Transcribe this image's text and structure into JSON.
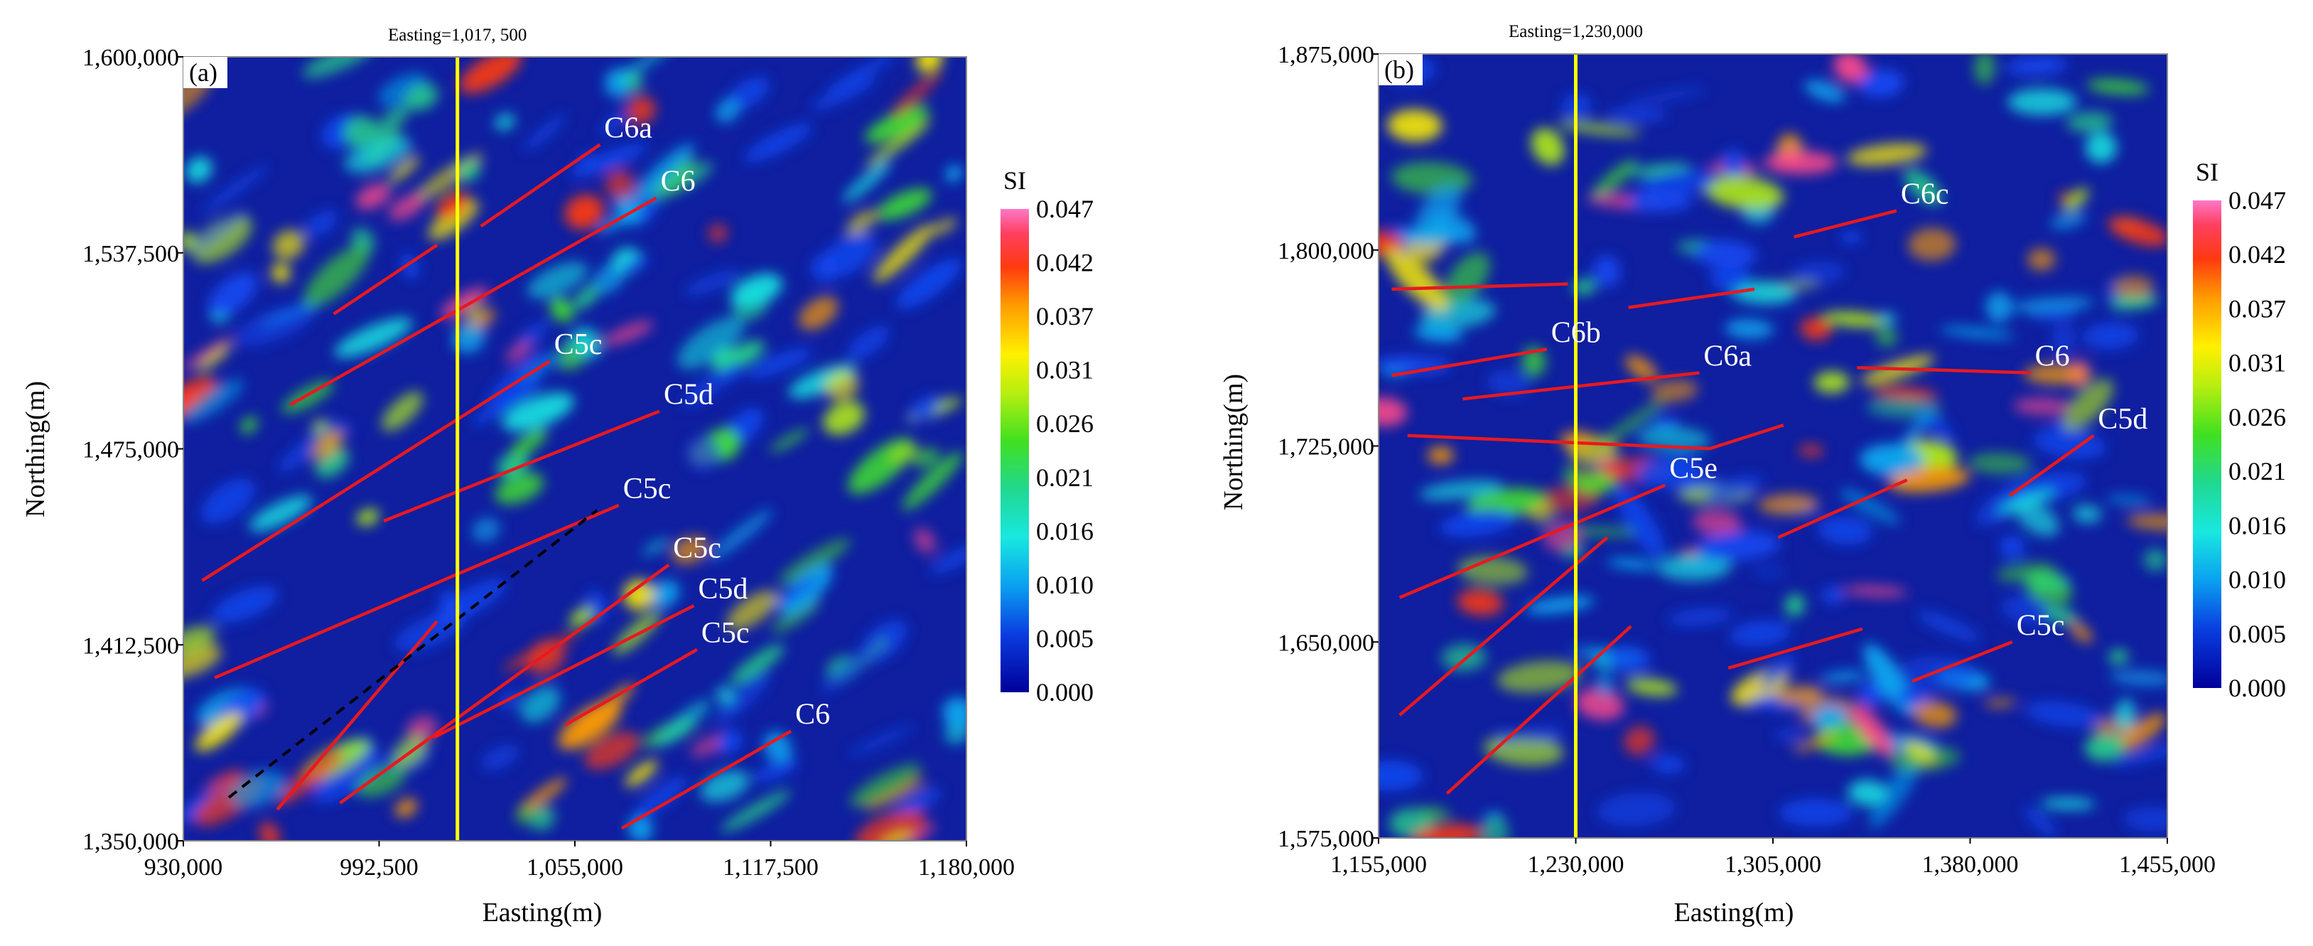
{
  "chart_data": [
    {
      "type": "heatmap",
      "panel_label": "(a)",
      "xlabel": "Easting(m)",
      "ylabel": "Northing(m)",
      "x_ticks": [
        "930,000",
        "992,500",
        "1,055,000",
        "1,117,500",
        "1,180,000"
      ],
      "y_ticks": [
        "1,600,000",
        "1,537,500",
        "1,475,000",
        "1,412,500",
        "1,350,000"
      ],
      "xlim": [
        930000,
        1180000
      ],
      "ylim": [
        1350000,
        1600000
      ],
      "profile_label": "Easting=1,017, 500",
      "profile_easting": 1017500,
      "lineaments": [
        {
          "label": "C6a",
          "x1": 1025000,
          "y1": 1546000,
          "x2": 1063000,
          "y2": 1572000
        },
        {
          "label": "C6",
          "x1": 964000,
          "y1": 1489000,
          "x2": 1081000,
          "y2": 1555000
        },
        {
          "label": "",
          "x1": 978000,
          "y1": 1518000,
          "x2": 1011000,
          "y2": 1540000
        },
        {
          "label": "C5c",
          "x1": 936000,
          "y1": 1433000,
          "x2": 1047000,
          "y2": 1503000
        },
        {
          "label": "C5d",
          "x1": 994000,
          "y1": 1452000,
          "x2": 1082000,
          "y2": 1487000
        },
        {
          "label": "C5c",
          "x1": 940000,
          "y1": 1402000,
          "x2": 1069000,
          "y2": 1457000
        },
        {
          "label": "C5c",
          "x1": 980000,
          "y1": 1362000,
          "x2": 1085000,
          "y2": 1438000
        },
        {
          "label": "C5d",
          "x1": 1010000,
          "y1": 1383000,
          "x2": 1093000,
          "y2": 1425000
        },
        {
          "label": "C5c",
          "x1": 1052000,
          "y1": 1387000,
          "x2": 1094000,
          "y2": 1411000
        },
        {
          "label": "C6",
          "x1": 1070000,
          "y1": 1354000,
          "x2": 1124000,
          "y2": 1385000
        },
        {
          "label": "",
          "x1": 960000,
          "y1": 1360000,
          "x2": 1011000,
          "y2": 1420000
        }
      ],
      "colorbar": {
        "title": "SI",
        "ticks": [
          "0.047",
          "0.042",
          "0.037",
          "0.031",
          "0.026",
          "0.021",
          "0.016",
          "0.010",
          "0.005",
          "0.000"
        ]
      },
      "colors": {
        "lineament": "#e8191f",
        "profile": "#ffff00",
        "background": "#0f1fa0"
      }
    },
    {
      "type": "heatmap",
      "panel_label": "(b)",
      "xlabel": "Easting(m)",
      "ylabel": "Northing(m)",
      "x_ticks": [
        "1,155,000",
        "1,230,000",
        "1,305,000",
        "1,380,000",
        "1,455,000"
      ],
      "y_ticks": [
        "1,875,000",
        "1,800,000",
        "1,725,000",
        "1,650,000",
        "1,575,000"
      ],
      "xlim": [
        1155000,
        1455000
      ],
      "ylim": [
        1575000,
        1875000
      ],
      "profile_label": "Easting=1,230,000",
      "profile_easting": 1230000,
      "lineaments": [
        {
          "label": "C6c",
          "x1": 1313000,
          "y1": 1805000,
          "x2": 1352000,
          "y2": 1815000
        },
        {
          "label": "",
          "x1": 1160000,
          "y1": 1785000,
          "x2": 1227000,
          "y2": 1787000
        },
        {
          "label": "",
          "x1": 1250000,
          "y1": 1778000,
          "x2": 1298000,
          "y2": 1785000
        },
        {
          "label": "C6b",
          "x1": 1160000,
          "y1": 1752000,
          "x2": 1219000,
          "y2": 1762000
        },
        {
          "label": "C6a",
          "x1": 1187000,
          "y1": 1743000,
          "x2": 1277000,
          "y2": 1753000
        },
        {
          "label": "C6",
          "x1": 1337000,
          "y1": 1755000,
          "x2": 1403000,
          "y2": 1753000
        },
        {
          "label": "",
          "x1": 1166000,
          "y1": 1729000,
          "x2": 1281000,
          "y2": 1724000
        },
        {
          "label": "",
          "x1": 1281000,
          "y1": 1724000,
          "x2": 1309000,
          "y2": 1733000
        },
        {
          "label": "C5e",
          "x1": 1163000,
          "y1": 1667000,
          "x2": 1264000,
          "y2": 1710000
        },
        {
          "label": "",
          "x1": 1163000,
          "y1": 1622000,
          "x2": 1242000,
          "y2": 1690000
        },
        {
          "label": "",
          "x1": 1181000,
          "y1": 1592000,
          "x2": 1251000,
          "y2": 1656000
        },
        {
          "label": "",
          "x1": 1288000,
          "y1": 1640000,
          "x2": 1339000,
          "y2": 1655000
        },
        {
          "label": "",
          "x1": 1307000,
          "y1": 1690000,
          "x2": 1356000,
          "y2": 1712000
        },
        {
          "label": "C5d",
          "x1": 1395000,
          "y1": 1706000,
          "x2": 1427000,
          "y2": 1729000
        },
        {
          "label": "C5c",
          "x1": 1358000,
          "y1": 1635000,
          "x2": 1396000,
          "y2": 1650000
        }
      ],
      "colorbar": {
        "title": "SI",
        "ticks": [
          "0.047",
          "0.042",
          "0.037",
          "0.031",
          "0.026",
          "0.021",
          "0.016",
          "0.010",
          "0.005",
          "0.000"
        ]
      },
      "colors": {
        "lineament": "#e8191f",
        "profile": "#ffff00",
        "background": "#0f1fa0"
      }
    }
  ]
}
